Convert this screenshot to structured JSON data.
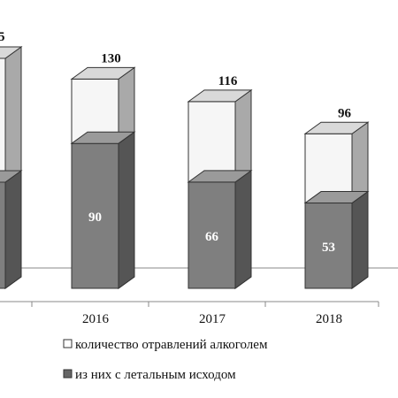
{
  "chart_data": {
    "type": "bar",
    "categories": [
      "",
      "2016",
      "2017",
      "2018"
    ],
    "series": [
      {
        "name": "количество отравлений алкоголем",
        "values": [
          null,
          130,
          116,
          96
        ]
      },
      {
        "name": "из них с летальным исходом",
        "values": [
          null,
          90,
          66,
          53
        ]
      }
    ],
    "partial_labels": [
      "5",
      "",
      "",
      ""
    ],
    "legend": {
      "entries": [
        "количество отравлений алкоголем",
        "из них с летальным исходом"
      ],
      "placement": "bottom"
    },
    "colors": {
      "total_front": "#f6f6f6",
      "total_side": "#a9a9a9",
      "total_top": "#d9d9d9",
      "fatal_front": "#7f7f7f",
      "fatal_side": "#555555",
      "fatal_top": "#9a9a9a",
      "outline": "#333333",
      "axis": "#888888"
    },
    "grid": false
  }
}
